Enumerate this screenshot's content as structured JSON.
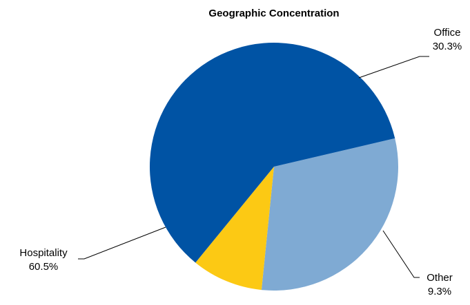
{
  "chart_data": {
    "type": "pie",
    "title": "Geographic Concentration",
    "slices": [
      {
        "label": "Office",
        "value": 30.3,
        "display": "30.3%",
        "color": "#7FAAD3"
      },
      {
        "label": "Other",
        "value": 9.3,
        "display": "9.3%",
        "color": "#FCC914"
      },
      {
        "label": "Hospitality",
        "value": 60.5,
        "display": "60.5%",
        "color": "#0053A4"
      }
    ],
    "start_angle_deg": -13.2,
    "direction": "clockwise",
    "legend": "none"
  }
}
